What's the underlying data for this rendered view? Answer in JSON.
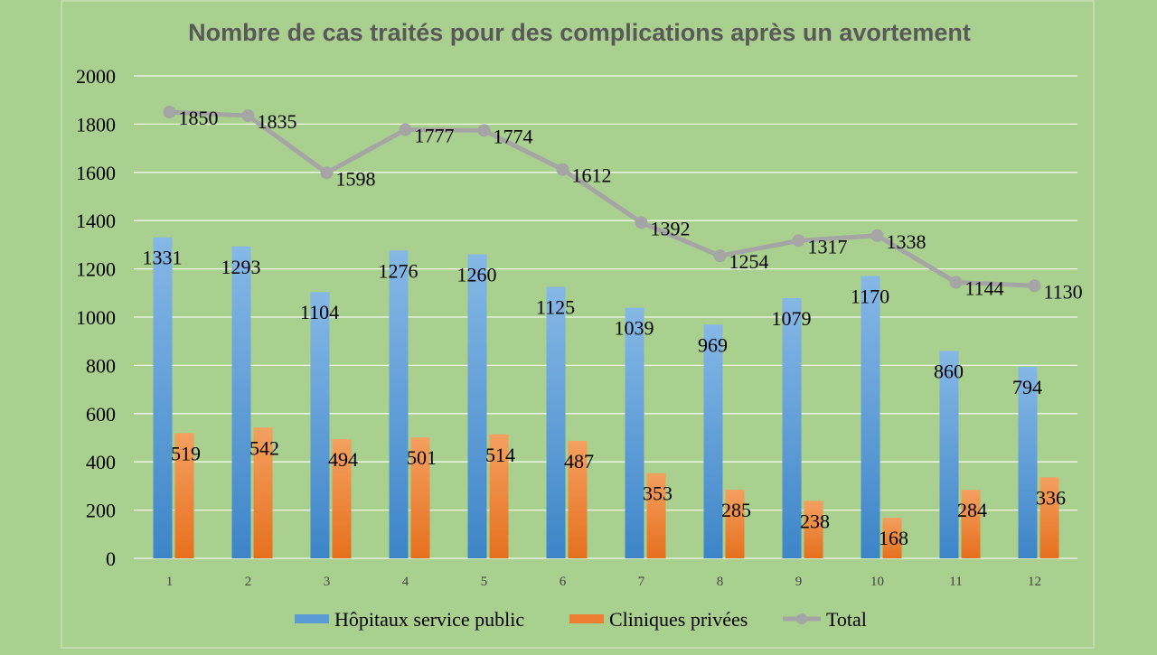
{
  "colors": {
    "background": "#a9d08e",
    "public": "#5b9bd5",
    "private": "#ed7d31",
    "total": "#a5a5a5",
    "title": "#595959",
    "grid": "#ffffff",
    "text": "#000000"
  },
  "chart_data": {
    "type": "bar",
    "title": "Nombre de cas traités pour des complications après un avortement",
    "xlabel": "",
    "ylabel": "",
    "ylim": [
      0,
      2000
    ],
    "yticks": [
      "0",
      "200",
      "400",
      "600",
      "800",
      "1000",
      "1200",
      "1400",
      "1600",
      "1800",
      "2000"
    ],
    "categories": [
      "1",
      "2",
      "3",
      "4",
      "5",
      "6",
      "7",
      "8",
      "9",
      "10",
      "11",
      "12"
    ],
    "grid": true,
    "legend_position": "bottom",
    "series": [
      {
        "name": "Hôpitaux service public",
        "kind": "bar",
        "values": [
          1331,
          1293,
          1104,
          1276,
          1260,
          1125,
          1039,
          969,
          1079,
          1170,
          860,
          794
        ]
      },
      {
        "name": "Cliniques privées",
        "kind": "bar",
        "values": [
          519,
          542,
          494,
          501,
          514,
          487,
          353,
          285,
          238,
          168,
          284,
          336
        ]
      },
      {
        "name": "Total",
        "kind": "line",
        "values": [
          1850,
          1835,
          1598,
          1777,
          1774,
          1612,
          1392,
          1254,
          1317,
          1338,
          1144,
          1130
        ]
      }
    ]
  }
}
